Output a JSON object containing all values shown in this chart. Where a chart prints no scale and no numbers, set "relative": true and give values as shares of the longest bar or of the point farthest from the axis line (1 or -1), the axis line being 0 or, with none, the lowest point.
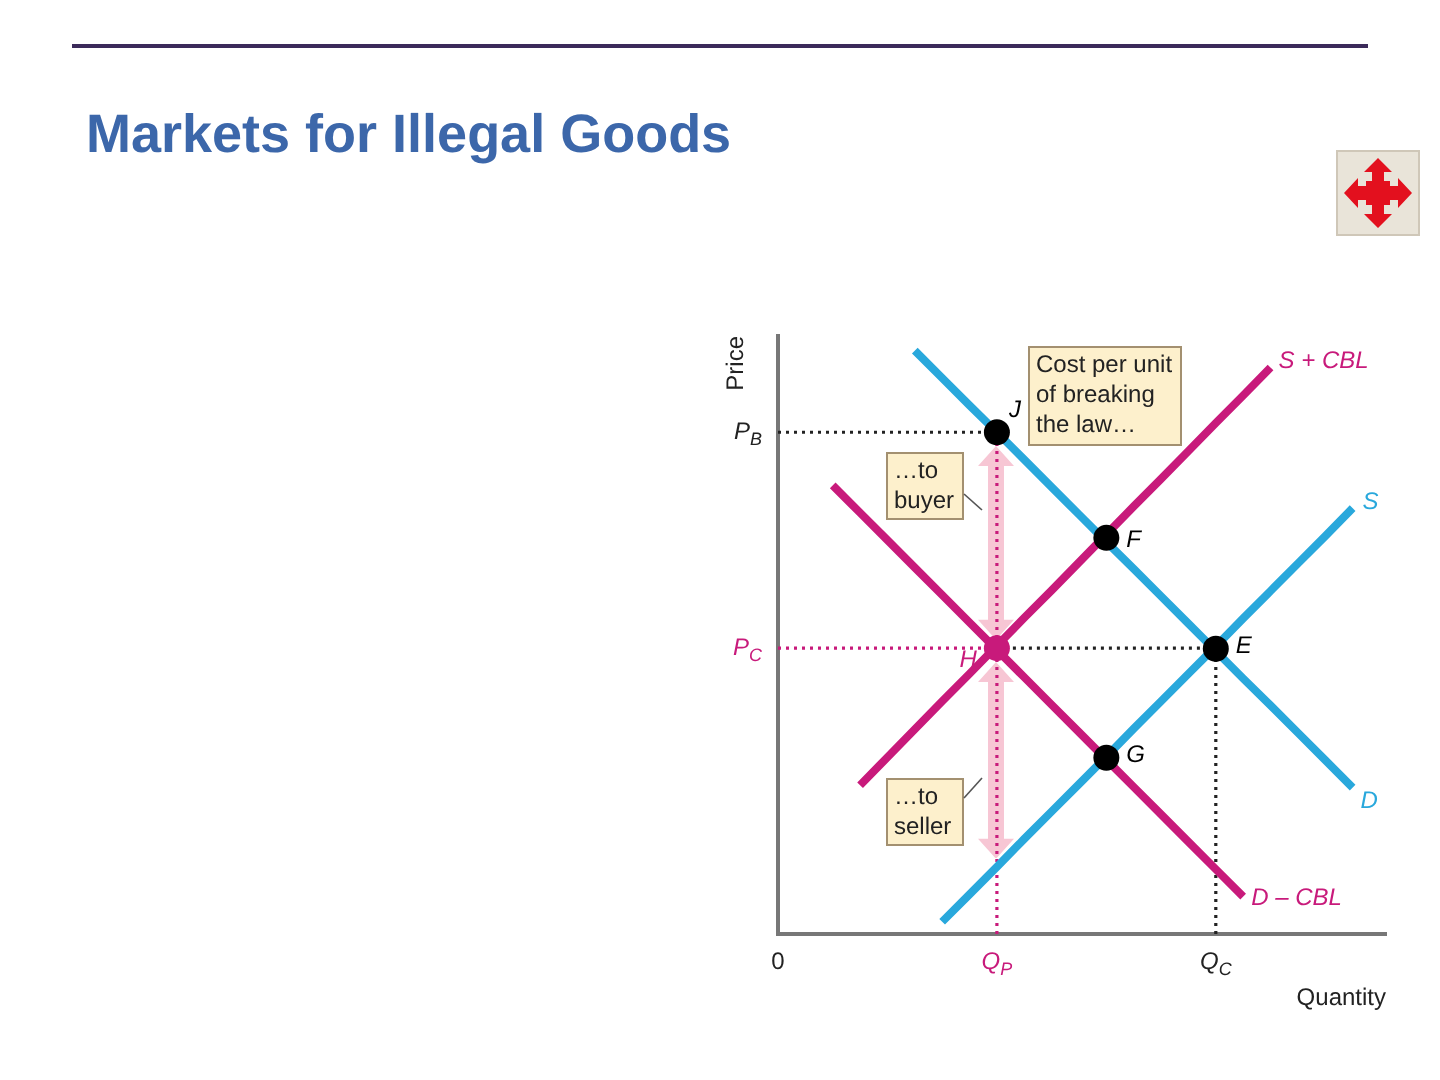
{
  "chart_data": {
    "type": "line",
    "title": "Markets for Illegal Goods",
    "xlabel": "Quantity",
    "ylabel": "Price",
    "relative": true,
    "categories": [
      "0",
      null,
      null,
      null,
      null,
      null,
      null,
      null,
      "Q$_{P}$",
      null,
      null,
      null,
      null,
      null,
      null,
      null,
      "Q$_{C}$",
      null,
      null,
      null,
      null,
      null,
      null
    ],
    "series": [
      {
        "name": "S + CBL",
        "color": "#c81a7b",
        "values": [
          null,
          null,
          null,
          0.255,
          0.303,
          0.351,
          0.399,
          0.446,
          0.494,
          0.542,
          0.589,
          0.637,
          0.685,
          0.733,
          0.78,
          0.828,
          0.876,
          0.923,
          0.971,
          null,
          null,
          null,
          null
        ]
      },
      {
        "name": "S",
        "color": "#29a8dc",
        "values": [
          null,
          null,
          null,
          null,
          null,
          null,
          0.021,
          0.068,
          0.115,
          0.163,
          0.21,
          0.257,
          0.304,
          0.352,
          0.399,
          0.446,
          0.493,
          0.541,
          0.588,
          0.635,
          0.682,
          0.73,
          null
        ]
      },
      {
        "name": "D",
        "color": "#29a8dc",
        "values": [
          null,
          null,
          null,
          null,
          null,
          1,
          0.953,
          0.906,
          0.86,
          0.813,
          0.766,
          0.719,
          0.672,
          0.626,
          0.579,
          0.532,
          0.485,
          0.438,
          0.392,
          0.345,
          0.298,
          0.251,
          null
        ]
      },
      {
        "name": "D – CBL",
        "color": "#c81a7b",
        "values": [
          null,
          null,
          0.769,
          0.722,
          0.675,
          0.628,
          0.581,
          0.534,
          0.487,
          0.44,
          0.393,
          0.346,
          0.299,
          0.252,
          0.205,
          0.158,
          0.111,
          0.064,
          null,
          null,
          null,
          null,
          null
        ]
      },
      {
        "name": "P$_{B}$",
        "color": "#222222",
        "line_style": "dotted",
        "values": [
          0.86,
          0.86,
          0.86,
          0.86,
          0.86,
          0.86,
          0.86,
          0.86,
          0.86,
          null,
          null,
          null,
          null,
          null,
          null,
          null,
          null,
          null,
          null,
          null,
          null,
          null,
          null
        ]
      },
      {
        "name": "P$_{C}$",
        "color": "#c81a7b",
        "line_style": "dotted",
        "values": [
          0.49,
          0.49,
          0.49,
          0.49,
          0.49,
          0.49,
          0.49,
          0.49,
          0.49,
          null,
          null,
          null,
          null,
          null,
          null,
          null,
          null,
          null,
          null,
          null,
          null,
          null,
          null
        ]
      },
      {
        "color": "#222222",
        "line_style": "dotted",
        "values": [
          null,
          null,
          null,
          null,
          null,
          null,
          null,
          null,
          0.49,
          0.49,
          0.49,
          0.49,
          0.49,
          0.49,
          0.49,
          0.49,
          0.49,
          null,
          null,
          null,
          null,
          null,
          null
        ]
      },
      {
        "color": "#c81a7b",
        "line_style": "dotted",
        "x": [
          "Q$_{P}$",
          "Q$_{P}$"
        ],
        "values": [
          0,
          0.86
        ]
      },
      {
        "color": "#222222",
        "line_style": "dotted",
        "x": [
          "Q$_{C}$",
          "Q$_{C}$"
        ],
        "values": [
          0,
          0.489
        ]
      },
      {
        "type": "scatter",
        "marker": "circle",
        "color": "#000000",
        "values": [
          null,
          null,
          null,
          null,
          null,
          null,
          null,
          null,
          0.86,
          null,
          null,
          null,
          0.679,
          null,
          null,
          null,
          0.489,
          null,
          null,
          null,
          null,
          null,
          null
        ]
      },
      {
        "type": "scatter",
        "marker": "circle",
        "color": "#000000",
        "values": [
          null,
          null,
          null,
          null,
          null,
          null,
          null,
          null,
          null,
          null,
          null,
          null,
          0.302,
          null,
          null,
          null,
          null,
          null,
          null,
          null,
          null,
          null,
          null
        ]
      },
      {
        "type": "scatter",
        "marker": "circle",
        "color": "#c81a7b",
        "values": [
          null,
          null,
          null,
          null,
          null,
          null,
          null,
          null,
          0.49,
          null,
          null,
          null,
          null,
          null,
          null,
          null,
          null,
          null,
          null,
          null,
          null,
          null,
          null
        ]
      }
    ],
    "annotations": [
      "Cost per unit of breaking the law…",
      "…to buyer",
      "…to seller",
      "F",
      "G",
      {
        "text": "J",
        "x": "Q$_{P}$",
        "y": 0.86
      },
      {
        "text": "E",
        "x": "Q$_{C}$",
        "y": 0.489
      },
      {
        "text": "H",
        "x": "Q$_{P}$",
        "y": 0.49
      }
    ]
  }
}
